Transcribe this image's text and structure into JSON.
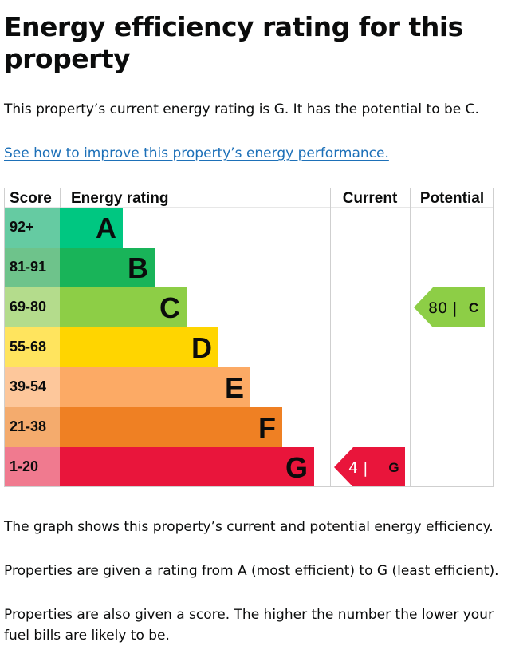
{
  "heading": "Energy efficiency rating for this property",
  "intro": "This property’s current energy rating is G. It has the potential to be C.",
  "improve_link": "See how to improve this property’s energy performance.",
  "chart_data": {
    "type": "bar",
    "headers": {
      "score": "Score",
      "rating": "Energy rating",
      "current": "Current",
      "potential": "Potential"
    },
    "bands": [
      {
        "letter": "A",
        "range": "92+",
        "color": "#00c781",
        "score_bg": "#65cba2"
      },
      {
        "letter": "B",
        "range": "81-91",
        "color": "#19b459",
        "score_bg": "#6ec38b"
      },
      {
        "letter": "C",
        "range": "69-80",
        "color": "#8dce46",
        "score_bg": "#b4dc8c"
      },
      {
        "letter": "D",
        "range": "55-68",
        "color": "#ffd500",
        "score_bg": "#ffe45e"
      },
      {
        "letter": "E",
        "range": "39-54",
        "color": "#fcaa65",
        "score_bg": "#fdc79b"
      },
      {
        "letter": "F",
        "range": "21-38",
        "color": "#ef8023",
        "score_bg": "#f4ab6d"
      },
      {
        "letter": "G",
        "range": "1-20",
        "color": "#e9153b",
        "score_bg": "#f07a8f"
      }
    ],
    "current": {
      "score": 4,
      "letter": "G",
      "number_label": "4 |",
      "letter_color": "#0b0c0c",
      "number_color": "#ffffff"
    },
    "potential": {
      "score": 80,
      "letter": "C",
      "number_label": "80 |",
      "letter_color": "#0b0c0c",
      "number_color": "#0b0c0c"
    }
  },
  "graph_note": "The graph shows this property’s current and potential energy efficiency.",
  "rating_note": "Properties are given a rating from A (most efficient) to G (least efficient).",
  "score_note": "Properties are also given a score. The higher the number the lower your fuel bills are likely to be."
}
